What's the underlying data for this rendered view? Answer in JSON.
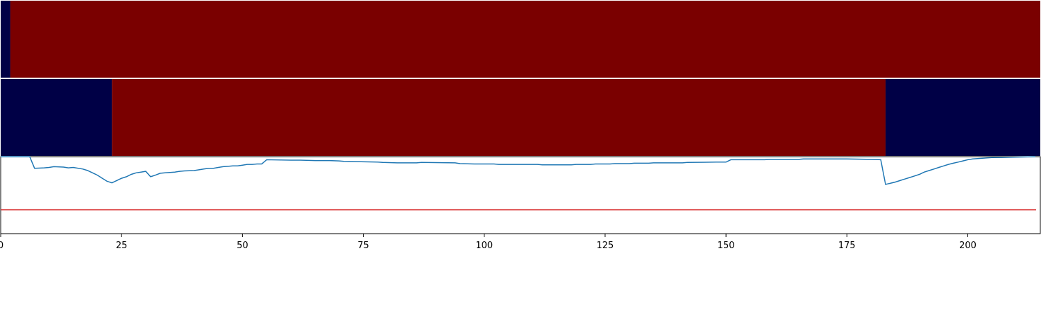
{
  "chart_data": [
    {
      "type": "heatmap",
      "x_range": [
        0,
        215
      ],
      "colors": {
        "low": "#000046",
        "high": "#7a0000"
      },
      "segments": [
        {
          "start": 0,
          "end": 2,
          "level": "low"
        },
        {
          "start": 2,
          "end": 215,
          "level": "high"
        }
      ]
    },
    {
      "type": "heatmap",
      "x_range": [
        0,
        215
      ],
      "colors": {
        "low": "#000046",
        "high": "#7a0000"
      },
      "segments": [
        {
          "start": 0,
          "end": 23,
          "level": "low"
        },
        {
          "start": 23,
          "end": 183,
          "level": "high"
        },
        {
          "start": 183,
          "end": 215,
          "level": "low"
        }
      ]
    },
    {
      "type": "line",
      "xlim": [
        0,
        215
      ],
      "ylim": [
        0,
        1
      ],
      "xticks": [
        "0",
        "25",
        "50",
        "75",
        "100",
        "125",
        "150",
        "175",
        "200"
      ],
      "xtick_values": [
        0,
        25,
        50,
        75,
        100,
        125,
        150,
        175,
        200
      ],
      "line_color": "#1f77b4",
      "threshold": {
        "value": 0.31,
        "color": "#d62728"
      },
      "series": [
        {
          "x": [
            0,
            6,
            7,
            9,
            10,
            11,
            13,
            14,
            15,
            17,
            18,
            19,
            20,
            21,
            22,
            23,
            24,
            25,
            26,
            27,
            28,
            29,
            30,
            31,
            32,
            33,
            34,
            35,
            36,
            37,
            38,
            40,
            41,
            42,
            43,
            44,
            45,
            46,
            47,
            48,
            49,
            50,
            51,
            52,
            53,
            54,
            55,
            60,
            62,
            65,
            68,
            70,
            71,
            78,
            79,
            82,
            86,
            87,
            94,
            95,
            98,
            102,
            103,
            106,
            107,
            111,
            112,
            115,
            116,
            118,
            119,
            122,
            123,
            126,
            127,
            130,
            131,
            134,
            135,
            141,
            142,
            148,
            150,
            151,
            155,
            158,
            159,
            165,
            166,
            174,
            175,
            180,
            182,
            183,
            185,
            186,
            187,
            188,
            189,
            190,
            191,
            192,
            193,
            194,
            195,
            196,
            197,
            198,
            199,
            200,
            201,
            202,
            203,
            204,
            205,
            207,
            210,
            214
          ],
          "y": [
            1.0,
            1.0,
            0.85,
            0.855,
            0.86,
            0.87,
            0.865,
            0.855,
            0.86,
            0.84,
            0.82,
            0.79,
            0.76,
            0.72,
            0.68,
            0.66,
            0.69,
            0.72,
            0.74,
            0.77,
            0.79,
            0.8,
            0.81,
            0.74,
            0.76,
            0.785,
            0.79,
            0.795,
            0.8,
            0.81,
            0.815,
            0.82,
            0.83,
            0.84,
            0.85,
            0.85,
            0.86,
            0.87,
            0.875,
            0.88,
            0.88,
            0.89,
            0.9,
            0.9,
            0.905,
            0.905,
            0.96,
            0.955,
            0.955,
            0.95,
            0.95,
            0.945,
            0.94,
            0.93,
            0.925,
            0.92,
            0.92,
            0.925,
            0.92,
            0.91,
            0.905,
            0.905,
            0.9,
            0.9,
            0.9,
            0.9,
            0.895,
            0.895,
            0.895,
            0.895,
            0.9,
            0.9,
            0.905,
            0.905,
            0.91,
            0.91,
            0.915,
            0.915,
            0.92,
            0.92,
            0.925,
            0.93,
            0.93,
            0.96,
            0.96,
            0.96,
            0.965,
            0.965,
            0.97,
            0.97,
            0.97,
            0.965,
            0.96,
            0.64,
            0.67,
            0.69,
            0.71,
            0.73,
            0.75,
            0.77,
            0.8,
            0.82,
            0.84,
            0.86,
            0.88,
            0.9,
            0.915,
            0.93,
            0.945,
            0.96,
            0.97,
            0.975,
            0.98,
            0.985,
            0.988,
            0.99,
            0.995,
            1.0
          ]
        }
      ]
    }
  ]
}
